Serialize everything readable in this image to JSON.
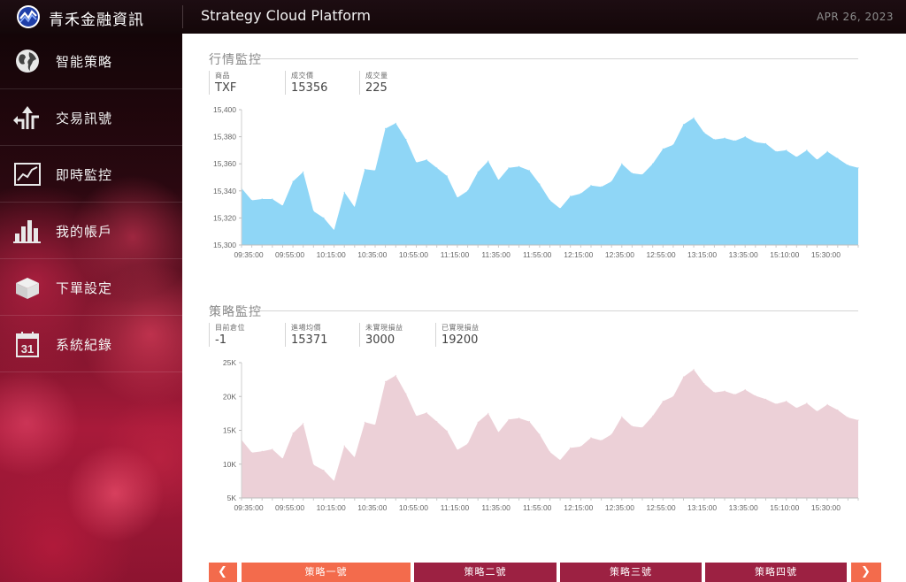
{
  "header": {
    "brand": "青禾金融資訊",
    "app_title": "Strategy Cloud Platform",
    "date": "APR 26, 2023"
  },
  "sidebar": {
    "items": [
      {
        "label": "智能策略",
        "icon": "globe-icon"
      },
      {
        "label": "交易訊號",
        "icon": "signal-arrows-icon"
      },
      {
        "label": "即時監控",
        "icon": "line-chart-icon"
      },
      {
        "label": "我的帳戶",
        "icon": "bar-chart-icon"
      },
      {
        "label": "下單設定",
        "icon": "box-icon"
      },
      {
        "label": "系統紀錄",
        "icon": "calendar-icon",
        "icon_text": "31"
      }
    ]
  },
  "market": {
    "title": "行情監控",
    "metrics": [
      {
        "label": "商品",
        "value": "TXF"
      },
      {
        "label": "成交價",
        "value": "15356"
      },
      {
        "label": "成交量",
        "value": "225"
      }
    ]
  },
  "strategy": {
    "title": "策略監控",
    "metrics": [
      {
        "label": "目前倉位",
        "value": "-1"
      },
      {
        "label": "進場均價",
        "value": "15371"
      },
      {
        "label": "未實現損益",
        "value": "3000"
      },
      {
        "label": "已實現損益",
        "value": "19200"
      }
    ]
  },
  "tabs": {
    "prev": "❮",
    "next": "❯",
    "items": [
      "策略一號",
      "策略二號",
      "策略三號",
      "策略四號"
    ],
    "active_index": 0
  },
  "colors": {
    "price_fill": "#8fd6f6",
    "pnl_fill": "#ecd0d7",
    "accent": "#f36b4c",
    "tab_inactive": "#9c2142"
  },
  "chart_data": [
    {
      "type": "area",
      "x_tick_labels": [
        "09:35:00",
        "09:55:00",
        "10:15:00",
        "10:35:00",
        "10:55:00",
        "11:15:00",
        "11:35:00",
        "11:55:00",
        "12:15:00",
        "12:35:00",
        "12:55:00",
        "13:15:00",
        "13:35:00",
        "15:10:00",
        "15:30:00"
      ],
      "y_tick_labels": [
        "15,400",
        "15,380",
        "15,360",
        "15,340",
        "15,320",
        "15,300"
      ],
      "ylim": [
        15300,
        15400
      ],
      "grid": false,
      "series": [
        {
          "values": [
            15342,
            15333,
            15334,
            15334,
            15329,
            15347,
            15354,
            15325,
            15320,
            15311,
            15339,
            15328,
            15356,
            15355,
            15386,
            15390,
            15378,
            15361,
            15363,
            15357,
            15351,
            15335,
            15340,
            15354,
            15362,
            15348,
            15357,
            15358,
            15355,
            15345,
            15333,
            15327,
            15336,
            15338,
            15344,
            15343,
            15347,
            15360,
            15353,
            15352,
            15360,
            15371,
            15374,
            15389,
            15394,
            15383,
            15378,
            15379,
            15377,
            15380,
            15376,
            15375,
            15369,
            15370,
            15365,
            15370,
            15363,
            15369,
            15364,
            15359,
            15357
          ]
        }
      ]
    },
    {
      "type": "area",
      "x_tick_labels": [
        "09:35:00",
        "09:55:00",
        "10:15:00",
        "10:35:00",
        "10:55:00",
        "11:15:00",
        "11:35:00",
        "11:55:00",
        "12:15:00",
        "12:35:00",
        "12:55:00",
        "13:15:00",
        "13:35:00",
        "15:10:00",
        "15:30:00"
      ],
      "y_tick_labels": [
        "25K",
        "20K",
        "15K",
        "10K",
        "5K"
      ],
      "ylim": [
        5000,
        25000
      ],
      "grid": false,
      "series": [
        {
          "values": [
            13600,
            11700,
            11900,
            12200,
            10800,
            14600,
            16000,
            9900,
            9100,
            7500,
            12700,
            11000,
            16200,
            15800,
            22200,
            23100,
            20400,
            17100,
            17600,
            16300,
            14900,
            12100,
            13000,
            16200,
            17500,
            14700,
            16600,
            16800,
            16300,
            14400,
            11800,
            10600,
            12400,
            12600,
            13900,
            13500,
            14400,
            17000,
            15600,
            15400,
            17100,
            19300,
            20000,
            22900,
            24000,
            21900,
            20600,
            20800,
            20300,
            21000,
            20100,
            19600,
            18900,
            19300,
            18300,
            19000,
            17800,
            18800,
            18000,
            16900,
            16500
          ]
        }
      ]
    }
  ]
}
